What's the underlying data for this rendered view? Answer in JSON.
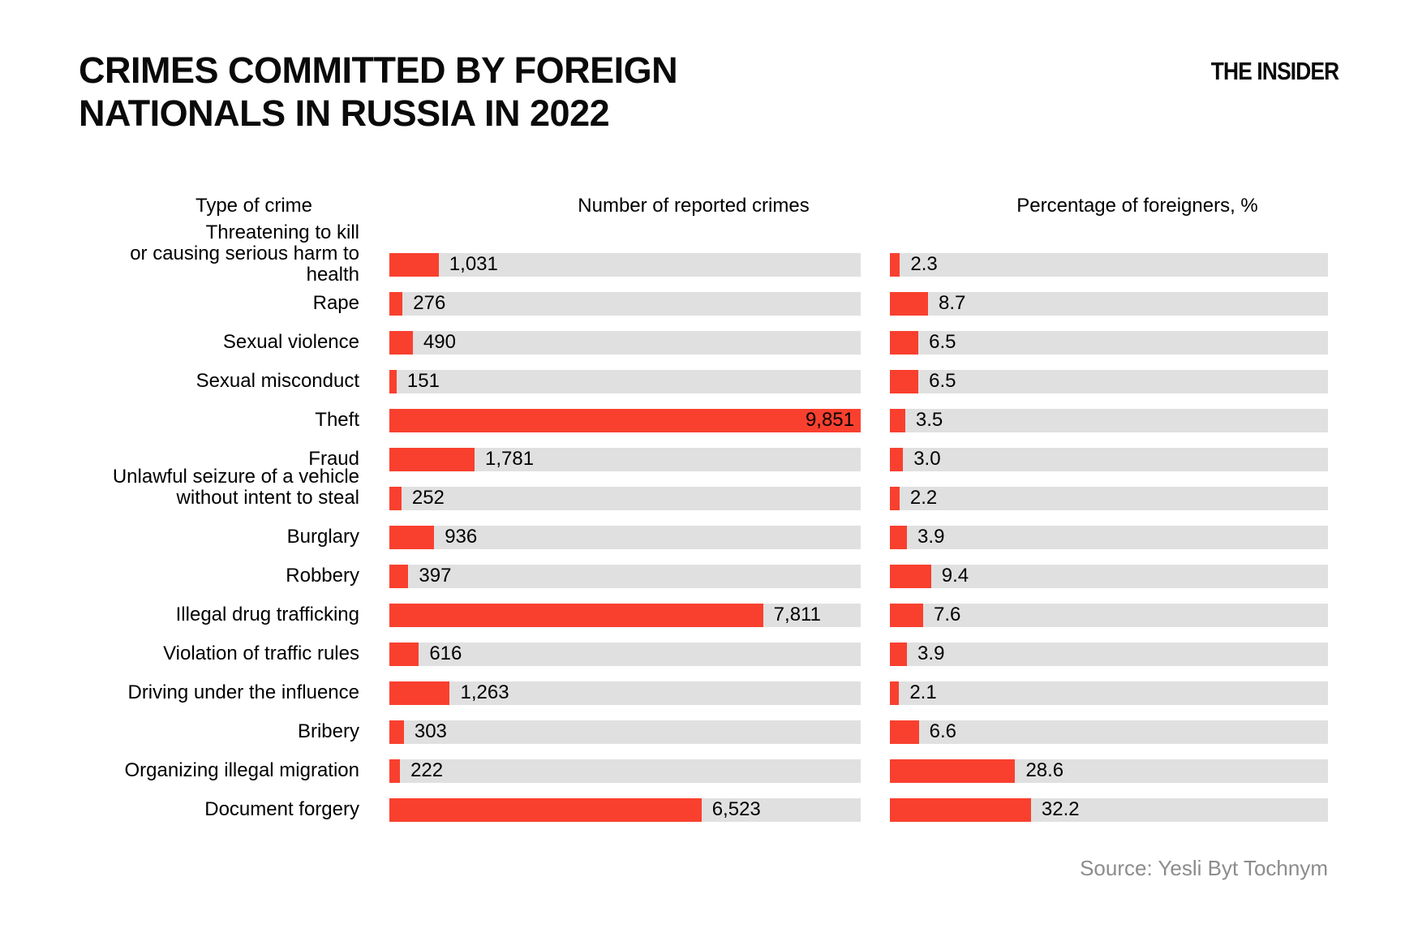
{
  "title_lines": [
    "CRIMES COMMITTED BY FOREIGN",
    "NATIONALS IN RUSSIA IN 2022"
  ],
  "logo": "THE INSIDER",
  "source": "Source: Yesli Byt Tochnym",
  "headers": [
    "Type of crime",
    "Number of reported crimes",
    "Percentage of foreigners, %"
  ],
  "colors": {
    "bar_red": "#f9402e",
    "track_gray": "#e0e0e0",
    "source_gray": "#8c8c8c"
  },
  "chart_data": {
    "type": "bar",
    "orientation": "horizontal",
    "title": "Crimes committed by foreign nationals in Russia in 2022",
    "legend_position": "none",
    "grid": false,
    "categories": [
      "Threatening to kill\nor causing serious harm to health",
      "Rape",
      "Sexual violence",
      "Sexual misconduct",
      "Theft",
      "Fraud",
      "Unlawful seizure of a vehicle\nwithout intent to steal",
      "Burglary",
      "Robbery",
      "Illegal drug trafficking",
      "Violation of traffic rules",
      "Driving under the influence",
      "Bribery",
      "Organizing illegal migration",
      "Document forgery"
    ],
    "series": [
      {
        "name": "Number of reported crimes",
        "values": [
          1031,
          276,
          490,
          151,
          9851,
          1781,
          252,
          936,
          397,
          7811,
          616,
          1263,
          303,
          222,
          6523
        ],
        "labels": [
          "1,031",
          "276",
          "490",
          "151",
          "9,851",
          "1,781",
          "252",
          "936",
          "397",
          "7,811",
          "616",
          "1,263",
          "303",
          "222",
          "6,523"
        ],
        "axis_max": 9851
      },
      {
        "name": "Percentage of foreigners, %",
        "values": [
          2.3,
          8.7,
          6.5,
          6.5,
          3.5,
          3.0,
          2.2,
          3.9,
          9.4,
          7.6,
          3.9,
          2.1,
          6.6,
          28.6,
          32.2
        ],
        "labels": [
          "2.3",
          "8.7",
          "6.5",
          "6.5",
          "3.5",
          "3.0",
          "2.2",
          "3.9",
          "9.4",
          "7.6",
          "3.9",
          "2.1",
          "6.6",
          "28.6",
          "32.2"
        ],
        "axis_max": 100
      }
    ]
  }
}
